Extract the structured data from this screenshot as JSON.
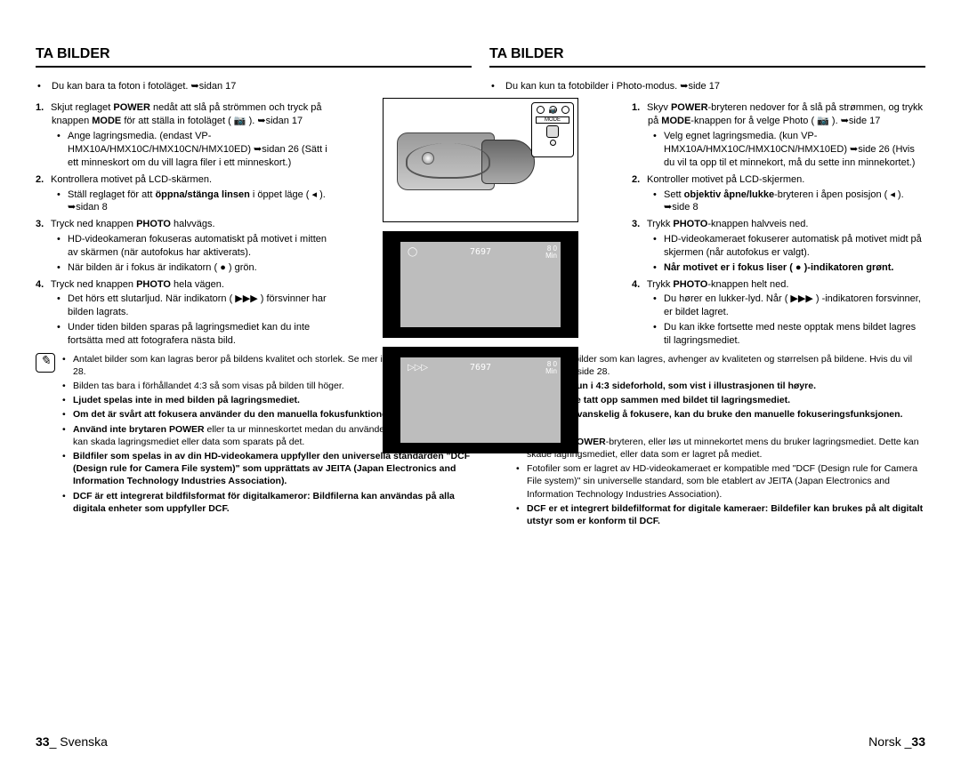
{
  "section_title_sv": "TA BILDER",
  "section_title_no": "TA BILDER",
  "sv": {
    "intro": "Du kan bara ta foton i fotoläget. ➥sidan 17",
    "steps": [
      {
        "n": "1.",
        "t": "Skjut reglaget <b>POWER</b> nedåt att slå på strömmen och tryck på knappen <b>MODE</b> för att ställa in fotoläget ( 📷 ). ➥sidan 17",
        "subs": [
          "Ange lagringsmedia. (endast VP-HMX10A/HMX10C/HMX10CN/HMX10ED) ➥sidan 26 (Sätt i ett minneskort om du vill lagra filer i ett minneskort.)"
        ]
      },
      {
        "n": "2.",
        "t": "Kontrollera motivet på LCD-skärmen.",
        "subs": [
          "Ställ reglaget för att <b>öppna/stänga linsen</b> i öppet läge ( ◂ ). ➥sidan 8"
        ]
      },
      {
        "n": "3.",
        "t": "Tryck ned knappen <b>PHOTO</b> halvvägs.",
        "subs": [
          "HD-videokameran fokuseras automatiskt på motivet i mitten av skärmen (när autofokus har aktiverats).",
          "När bilden är i fokus är indikatorn ( ● ) grön."
        ]
      },
      {
        "n": "4.",
        "t": "Tryck ned knappen <b>PHOTO</b> hela vägen.",
        "subs": [
          "Det hörs ett slutarljud. När indikatorn ( ▶▶▶ ) försvinner har bilden lagrats.",
          "Under tiden bilden sparas på lagringsmediet kan du inte fortsätta med att fotografera nästa bild."
        ]
      }
    ],
    "notes": [
      "Antalet bilder som kan lagras beror på bildens kvalitet och storlek. Se mer information på sidan 28.",
      "Bilden tas bara i förhållandet 4:3 så som visas på bilden till höger.",
      "<b>Ljudet spelas inte in med bilden på lagringsmediet.</b>",
      "<b>Om det är svårt att fokusera använder du den manuella fokusfunktionen.</b> ➥sidan 56",
      "<b>Använd inte brytaren POWER</b> eller ta ur minneskortet medan du använder lagringsmediet. Det kan skada lagringsmediet eller data som sparats på det.",
      "<b>Bildfiler som spelas in av din HD-videokamera uppfyller den universella standarden \"DCF (Design rule for Camera File system)\" som upprättats av JEITA (Japan Electronics and Information Technology Industries Association).</b>",
      "<b>DCF är ett integrerat bildfilsformat för digitalkameror: Bildfilerna kan användas på alla digitala enheter som uppfyller DCF.</b>"
    ]
  },
  "no": {
    "intro": "Du kan kun ta fotobilder i Photo-modus. ➥side 17",
    "steps": [
      {
        "n": "1.",
        "t": "Skyv <b>POWER</b>-bryteren nedover for å slå på strømmen, og trykk på <b>MODE</b>-knappen for å velge Photo ( 📷 ). ➥side 17",
        "subs": [
          "Velg egnet lagringsmedia. (kun VP-HMX10A/HMX10C/HMX10CN/HMX10ED) ➥side 26 (Hvis du vil ta opp til et minnekort, må du sette inn minnekortet.)"
        ]
      },
      {
        "n": "2.",
        "t": "Kontroller motivet på LCD-skjermen.",
        "subs": [
          "Sett <b>objektiv åpne/lukke</b>-bryteren i åpen posisjon ( ◂ ). ➥side 8"
        ]
      },
      {
        "n": "3.",
        "t": "Trykk <b>PHOTO</b>-knappen halvveis ned.",
        "subs": [
          "HD-videokameraet fokuserer automatisk på motivet midt på skjermen (når autofokus er valgt).",
          "<b>Når motivet er i fokus liser ( ● )-indikatoren grønt.</b>"
        ]
      },
      {
        "n": "4.",
        "t": "Trykk <b>PHOTO</b>-knappen helt ned.",
        "subs": [
          "Du hører en lukker-lyd. Når ( ▶▶▶ ) -indikatoren forsvinner, er bildet lagret.",
          "Du kan ikke fortsette med neste opptak mens bildet lagres til lagringsmediet."
        ]
      }
    ],
    "notes": [
      "Antallet stillbilder som kan lagres, avhenger av kvaliteten og størrelsen på bildene. Hvis du vil vite mer, se side 28.",
      "<b>Bildet tas kun i 4:3 sideforhold, som vist i illustrasjonen til høyre.</b>",
      "<b>Lyd blir ikke tatt opp sammen med bildet til lagringsmediet.</b>",
      "<b>Hvis det er vanskelig å fokusere, kan du bruke den manuelle fokuseringsfunksjonen.</b> ➥side 56",
      "<b>Ikke bruk POWER</b>-bryteren, eller løs ut minnekortet mens du bruker lagringsmediet. Dette kan skade lagringsmediet, eller data som er lagret på mediet.",
      "Fotofiler som er lagret av HD-videokameraet er kompatible med \"DCF (Design rule for Camera File system)\" sin universelle standard, som ble etablert av JEITA (Japan Electronics and Information Technology Industries Association).",
      "<b>DCF er et integrert bildefilformat for digitale kameraer: Bildefiler kan brukes på alt digitalt utstyr som er konform til DCF.</b>"
    ]
  },
  "lcd": {
    "counter": "7697",
    "min_top": "8 0",
    "min_bot": "Min"
  },
  "footer": {
    "left_num": "33",
    "left_lang": "Svenska",
    "right_lang": "Norsk",
    "right_num": "33"
  },
  "colors": {
    "page_bg": "#ffffff",
    "text": "#000000",
    "lcd_frame": "#000000",
    "lcd_screen": "#bdbdbd"
  }
}
